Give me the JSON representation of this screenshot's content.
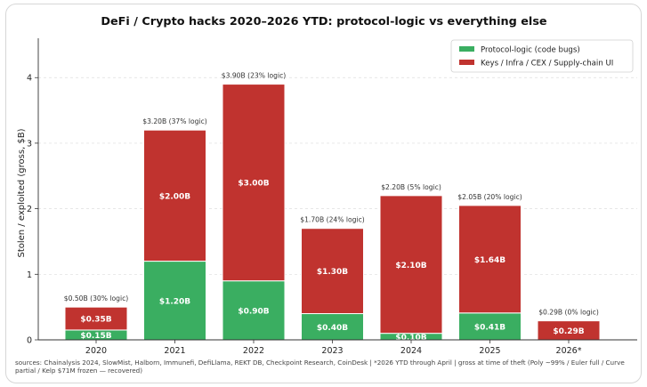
{
  "chart_data": {
    "type": "bar",
    "stacked": true,
    "title": "DeFi / Crypto hacks 2020–2026 YTD: protocol-logic vs everything else",
    "xlabel": "",
    "ylabel": "Stolen / exploited (gross, $B)",
    "ylim": [
      0,
      4.6
    ],
    "yticks": [
      "0",
      "1",
      "2",
      "3",
      "4"
    ],
    "grid": "horizontal dashed",
    "legend_position": "top-right",
    "categories": [
      "2020",
      "2021",
      "2022",
      "2023",
      "2024",
      "2025",
      "2026*"
    ],
    "series": [
      {
        "name": "Protocol-logic (code bugs)",
        "color": "#3aae61",
        "values": [
          0.15,
          1.2,
          0.9,
          0.4,
          0.1,
          0.41,
          0.0
        ],
        "labels": [
          "$0.15B",
          "$1.20B",
          "$0.90B",
          "$0.40B",
          "$0.10B",
          "$0.41B",
          ""
        ]
      },
      {
        "name": "Keys / Infra / CEX / Supply-chain UI",
        "color": "#c0332f",
        "values": [
          0.35,
          2.0,
          3.0,
          1.3,
          2.1,
          1.64,
          0.29
        ],
        "labels": [
          "$0.35B",
          "$2.00B",
          "$3.00B",
          "$1.30B",
          "$2.10B",
          "$1.64B",
          "$0.29B"
        ]
      }
    ],
    "totals": [
      "$0.50B  (30% logic)",
      "$3.20B  (37% logic)",
      "$3.90B  (23% logic)",
      "$1.70B  (24% logic)",
      "$2.20B  (5% logic)",
      "$2.05B  (20% logic)",
      "$0.29B  (0% logic)"
    ],
    "source_note": "sources: Chainalysis 2024, SlowMist, Halborn, Immunefi, DefiLlama, REKT DB, Checkpoint Research, CoinDesk  |  *2026 YTD through April  |  gross at time of theft (Poly ~99% / Euler full / Curve partial / Kelp $71M frozen — recovered)"
  }
}
